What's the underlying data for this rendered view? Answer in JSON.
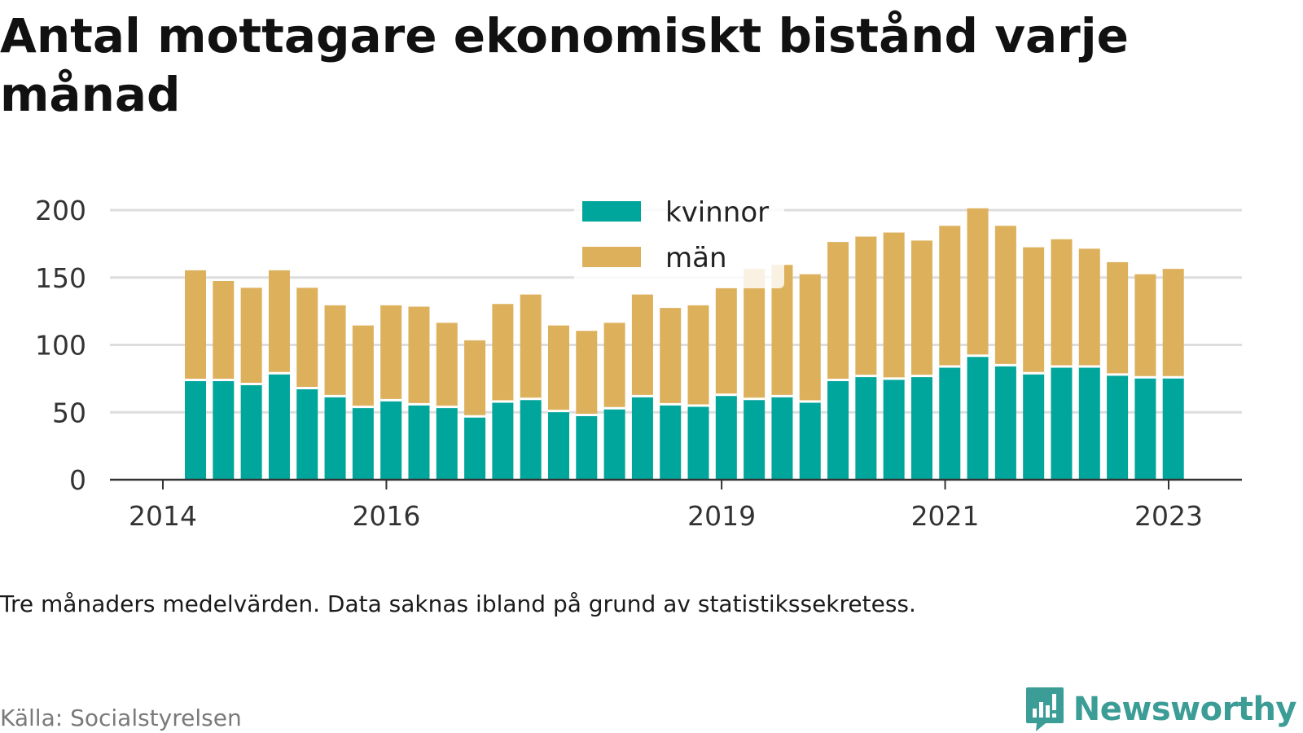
{
  "header": {
    "title": "Antal mottagare ekonomiskt bistånd varje månad"
  },
  "footer": {
    "note": "Tre månaders medelvärden. Data saknas ibland på grund av statistikssekretess.",
    "source": "Källa: Socialstyrelsen",
    "brand": "Newsworthy"
  },
  "colors": {
    "kvinnor": "#00a59b",
    "man": "#ddb05c",
    "brand": "#3c9c96",
    "grid": "#dddddd",
    "axis": "#333333"
  },
  "chart_data": {
    "type": "bar",
    "stacked": true,
    "legend_position": "top-center",
    "grid": true,
    "ylim": [
      0,
      200
    ],
    "yticks": [
      0,
      50,
      100,
      150,
      200
    ],
    "xticks": [
      {
        "label": "2014",
        "value": 2014.0
      },
      {
        "label": "2016",
        "value": 2016.0
      },
      {
        "label": "2019",
        "value": 2019.0
      },
      {
        "label": "2021",
        "value": 2021.0
      },
      {
        "label": "2023",
        "value": 2023.0
      }
    ],
    "x": [
      "2014-04",
      "2014-07",
      "2014-10",
      "2015-01",
      "2015-04",
      "2015-07",
      "2015-10",
      "2016-01",
      "2016-04",
      "2016-07",
      "2016-10",
      "2017-01",
      "2017-04",
      "2017-07",
      "2017-10",
      "2018-01",
      "2018-04",
      "2018-07",
      "2018-10",
      "2019-01",
      "2019-04",
      "2019-07",
      "2019-10",
      "2020-01",
      "2020-04",
      "2020-07",
      "2020-10",
      "2021-01",
      "2021-04",
      "2021-07",
      "2021-10",
      "2022-01",
      "2022-04",
      "2022-07",
      "2022-10",
      "2023-01"
    ],
    "series": [
      {
        "name": "kvinnor",
        "values": [
          74,
          74,
          71,
          79,
          68,
          62,
          54,
          59,
          56,
          54,
          47,
          58,
          60,
          51,
          48,
          53,
          62,
          56,
          55,
          63,
          60,
          62,
          58,
          74,
          77,
          75,
          77,
          84,
          92,
          85,
          79,
          84,
          84,
          78,
          76,
          76
        ]
      },
      {
        "name": "män",
        "values": [
          82,
          74,
          72,
          77,
          75,
          68,
          61,
          71,
          73,
          63,
          57,
          73,
          78,
          64,
          63,
          64,
          76,
          72,
          75,
          80,
          97,
          98,
          95,
          103,
          104,
          109,
          101,
          105,
          110,
          104,
          94,
          95,
          88,
          84,
          77,
          81
        ]
      }
    ]
  }
}
